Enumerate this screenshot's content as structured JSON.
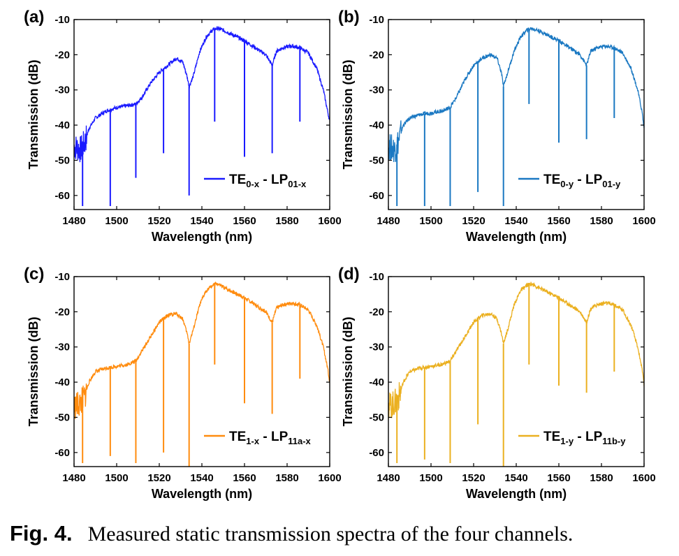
{
  "chart_data": [
    {
      "panel": "(a)",
      "type": "line",
      "color": "#1a1aff",
      "xlabel": "Wavelength (nm)",
      "ylabel": "Transmission (dB)",
      "xlim": [
        1480,
        1600
      ],
      "ylim": [
        -64,
        -10
      ],
      "xticks": [
        "1480",
        "1500",
        "1520",
        "1540",
        "1560",
        "1580",
        "1600"
      ],
      "yticks": [
        "-10",
        "-20",
        "-30",
        "-40",
        "-50",
        "-60"
      ],
      "legend": {
        "mode": "TE",
        "mode_sub": "0-x",
        "fiber": "LP",
        "fiber_sub": "01-x"
      },
      "x": [
        1480,
        1483,
        1485,
        1487,
        1490,
        1495,
        1500,
        1505,
        1509,
        1512,
        1516,
        1520,
        1524,
        1528,
        1531,
        1533,
        1534,
        1536,
        1539,
        1542,
        1545,
        1547,
        1550,
        1555,
        1560,
        1565,
        1570,
        1572,
        1573,
        1575,
        1578,
        1582,
        1586,
        1590,
        1594,
        1597,
        1599,
        1600
      ],
      "y": [
        -46,
        -47,
        -45,
        -41,
        -38,
        -36,
        -35,
        -34.5,
        -34,
        -32,
        -28,
        -25,
        -23,
        -21,
        -22,
        -26,
        -29,
        -26,
        -19,
        -15,
        -13,
        -12.5,
        -13,
        -14.5,
        -16,
        -18,
        -20,
        -22,
        -23,
        -19,
        -18,
        -17.5,
        -18,
        -19.5,
        -24,
        -30,
        -36,
        -39
      ],
      "notches": [
        {
          "x": 1484,
          "y": -63
        },
        {
          "x": 1497,
          "y": -63
        },
        {
          "x": 1509,
          "y": -55
        },
        {
          "x": 1522,
          "y": -48
        },
        {
          "x": 1534,
          "y": -60
        },
        {
          "x": 1546,
          "y": -39
        },
        {
          "x": 1560,
          "y": -49
        },
        {
          "x": 1573,
          "y": -48
        },
        {
          "x": 1586,
          "y": -39
        }
      ]
    },
    {
      "panel": "(b)",
      "type": "line",
      "color": "#1a78c2",
      "xlabel": "Wavelength (nm)",
      "ylabel": "Transmission (dB)",
      "xlim": [
        1480,
        1600
      ],
      "ylim": [
        -64,
        -10
      ],
      "xticks": [
        "1480",
        "1500",
        "1520",
        "1540",
        "1560",
        "1580",
        "1600"
      ],
      "yticks": [
        "-10",
        "-20",
        "-30",
        "-40",
        "-50",
        "-60"
      ],
      "legend": {
        "mode": "TE",
        "mode_sub": "0-y",
        "fiber": "LP",
        "fiber_sub": "01-y"
      },
      "x": [
        1480,
        1483,
        1485,
        1487,
        1490,
        1495,
        1500,
        1505,
        1509,
        1512,
        1516,
        1520,
        1524,
        1528,
        1531,
        1533,
        1534,
        1536,
        1539,
        1542,
        1545,
        1547,
        1550,
        1555,
        1560,
        1565,
        1570,
        1572,
        1573,
        1575,
        1578,
        1582,
        1586,
        1590,
        1594,
        1597,
        1599,
        1600
      ],
      "y": [
        -46,
        -47,
        -44,
        -40,
        -38,
        -37,
        -36.5,
        -36,
        -35,
        -32,
        -27,
        -23,
        -21,
        -20,
        -21,
        -25,
        -29,
        -25,
        -19,
        -15,
        -13,
        -12.5,
        -13,
        -14.5,
        -16,
        -18,
        -20,
        -22,
        -23,
        -19,
        -18,
        -17.5,
        -18,
        -19.5,
        -24,
        -30,
        -36,
        -41
      ],
      "notches": [
        {
          "x": 1484,
          "y": -63
        },
        {
          "x": 1497,
          "y": -63
        },
        {
          "x": 1509,
          "y": -63
        },
        {
          "x": 1522,
          "y": -59
        },
        {
          "x": 1534,
          "y": -63
        },
        {
          "x": 1546,
          "y": -34
        },
        {
          "x": 1560,
          "y": -45
        },
        {
          "x": 1573,
          "y": -44
        },
        {
          "x": 1586,
          "y": -38
        }
      ]
    },
    {
      "panel": "(c)",
      "type": "line",
      "color": "#ff8c0f",
      "xlabel": "Wavelength (nm)",
      "ylabel": "Transmission (dB)",
      "xlim": [
        1480,
        1600
      ],
      "ylim": [
        -64,
        -10
      ],
      "xticks": [
        "1480",
        "1500",
        "1520",
        "1540",
        "1560",
        "1580",
        "1600"
      ],
      "yticks": [
        "-10",
        "-20",
        "-30",
        "-40",
        "-50",
        "-60"
      ],
      "legend": {
        "mode": "TE",
        "mode_sub": "1-x",
        "fiber": "LP",
        "fiber_sub": "11a-x"
      },
      "x": [
        1480,
        1483,
        1485,
        1487,
        1490,
        1495,
        1500,
        1505,
        1509,
        1512,
        1516,
        1520,
        1524,
        1528,
        1531,
        1533,
        1534,
        1536,
        1539,
        1542,
        1545,
        1547,
        1550,
        1555,
        1560,
        1565,
        1570,
        1572,
        1573,
        1575,
        1578,
        1582,
        1586,
        1590,
        1594,
        1597,
        1599,
        1600
      ],
      "y": [
        -47,
        -46,
        -44,
        -40,
        -37,
        -36,
        -35.5,
        -35,
        -34,
        -31,
        -27,
        -23,
        -21,
        -20.5,
        -22,
        -26,
        -29,
        -25,
        -18,
        -14,
        -12.5,
        -12,
        -13,
        -14.5,
        -16,
        -18,
        -20,
        -22,
        -23,
        -19,
        -18,
        -17.5,
        -18,
        -19.5,
        -24,
        -30,
        -36,
        -40
      ],
      "notches": [
        {
          "x": 1484,
          "y": -63
        },
        {
          "x": 1497,
          "y": -61
        },
        {
          "x": 1509,
          "y": -63
        },
        {
          "x": 1522,
          "y": -60
        },
        {
          "x": 1534,
          "y": -64
        },
        {
          "x": 1546,
          "y": -35
        },
        {
          "x": 1560,
          "y": -46
        },
        {
          "x": 1573,
          "y": -49
        },
        {
          "x": 1586,
          "y": -39
        }
      ]
    },
    {
      "panel": "(d)",
      "type": "line",
      "color": "#ebb020",
      "xlabel": "Wavelength (nm)",
      "ylabel": "Transmission (dB)",
      "xlim": [
        1480,
        1600
      ],
      "ylim": [
        -64,
        -10
      ],
      "xticks": [
        "1480",
        "1500",
        "1520",
        "1540",
        "1560",
        "1580",
        "1600"
      ],
      "yticks": [
        "-10",
        "-20",
        "-30",
        "-40",
        "-50",
        "-60"
      ],
      "legend": {
        "mode": "TE",
        "mode_sub": "1-y",
        "fiber": "LP",
        "fiber_sub": "11b-y"
      },
      "x": [
        1480,
        1483,
        1485,
        1487,
        1490,
        1495,
        1500,
        1505,
        1509,
        1512,
        1516,
        1520,
        1524,
        1528,
        1531,
        1533,
        1534,
        1536,
        1539,
        1542,
        1545,
        1547,
        1550,
        1555,
        1560,
        1565,
        1570,
        1572,
        1573,
        1575,
        1578,
        1582,
        1586,
        1590,
        1594,
        1597,
        1599,
        1600
      ],
      "y": [
        -47,
        -46,
        -44,
        -40,
        -37,
        -36,
        -35.5,
        -35,
        -34,
        -31,
        -27,
        -23,
        -21,
        -20.5,
        -22,
        -26,
        -29,
        -25,
        -18,
        -14,
        -12.5,
        -12,
        -13,
        -14.5,
        -16,
        -18,
        -20,
        -22,
        -23,
        -19,
        -18,
        -17.5,
        -18,
        -19.5,
        -24,
        -30,
        -36,
        -41
      ],
      "notches": [
        {
          "x": 1484,
          "y": -63
        },
        {
          "x": 1497,
          "y": -62
        },
        {
          "x": 1509,
          "y": -63
        },
        {
          "x": 1522,
          "y": -52
        },
        {
          "x": 1534,
          "y": -64
        },
        {
          "x": 1546,
          "y": -35
        },
        {
          "x": 1560,
          "y": -41
        },
        {
          "x": 1573,
          "y": -43
        },
        {
          "x": 1586,
          "y": -37
        }
      ]
    }
  ],
  "caption": {
    "label": "Fig. 4.",
    "text": "Measured static transmission spectra of the four channels."
  }
}
